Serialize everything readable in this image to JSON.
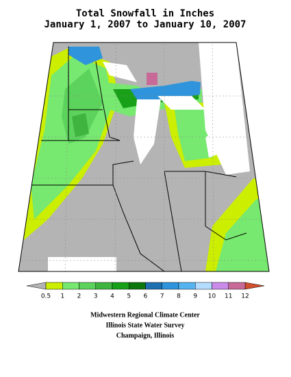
{
  "title_lines": [
    "Total Snowfall in Inches",
    "January 1, 2007 to January 10, 2007"
  ],
  "legend": {
    "labels": [
      "0.5",
      "1",
      "2",
      "3",
      "4",
      "5",
      "6",
      "7",
      "8",
      "9",
      "10",
      "11",
      "12"
    ],
    "colors": [
      "#ccee00",
      "#77e870",
      "#5cd35c",
      "#3fb43f",
      "#18a018",
      "#0b760b",
      "#1c70b0",
      "#2f94dc",
      "#55b4f0",
      "#b4dcff",
      "#c98ce8",
      "#c86a98"
    ],
    "low_color": "#b4b4b4",
    "high_color": "#d0502e"
  },
  "credits": [
    "Midwestern Regional Climate Center",
    "Illinois State Water Survey",
    "Champaign, Illinois"
  ]
}
